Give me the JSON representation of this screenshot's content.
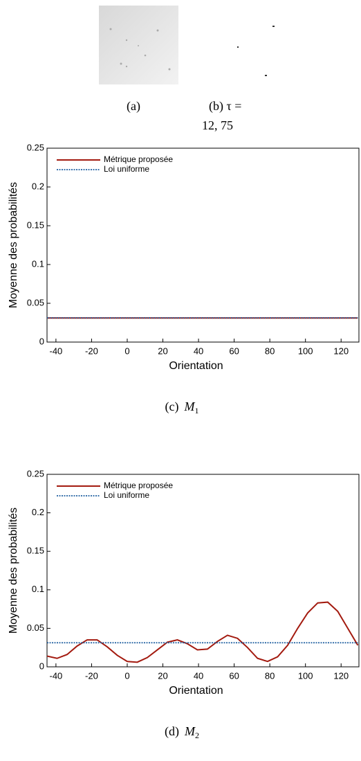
{
  "images": [
    {
      "caption_lines": [
        "(a)"
      ]
    },
    {
      "caption_lines": [
        "(b)  τ   =",
        "12, 75"
      ]
    }
  ],
  "chart_data": [
    {
      "type": "line",
      "caption": {
        "label": "(c)",
        "var": "M",
        "sub": "1"
      },
      "x_label": "Orientation",
      "y_label": "Moyenne des probabilités",
      "x": [
        -45,
        -39.375,
        -33.75,
        -28.125,
        -22.5,
        -16.875,
        -11.25,
        -5.625,
        0,
        5.625,
        11.25,
        16.875,
        22.5,
        28.125,
        33.75,
        39.375,
        45,
        50.625,
        56.25,
        61.875,
        67.5,
        73.125,
        78.75,
        84.375,
        90,
        95.625,
        101.25,
        106.875,
        112.5,
        118.125,
        123.75,
        129.375
      ],
      "series": [
        {
          "name": "Métrique proposée",
          "color": "#a31a0f",
          "dash": "solid",
          "values": [
            0.031,
            0.031,
            0.031,
            0.031,
            0.031,
            0.031,
            0.031,
            0.031,
            0.031,
            0.031,
            0.031,
            0.031,
            0.031,
            0.031,
            0.031,
            0.031,
            0.031,
            0.031,
            0.031,
            0.031,
            0.031,
            0.031,
            0.031,
            0.031,
            0.031,
            0.031,
            0.031,
            0.031,
            0.031,
            0.031,
            0.031,
            0.031
          ]
        },
        {
          "name": "Loi uniforme",
          "color": "#1f5fa0",
          "dash": "dotted",
          "values": [
            0.03125,
            0.03125,
            0.03125,
            0.03125,
            0.03125,
            0.03125,
            0.03125,
            0.03125,
            0.03125,
            0.03125,
            0.03125,
            0.03125,
            0.03125,
            0.03125,
            0.03125,
            0.03125,
            0.03125,
            0.03125,
            0.03125,
            0.03125,
            0.03125,
            0.03125,
            0.03125,
            0.03125,
            0.03125,
            0.03125,
            0.03125,
            0.03125,
            0.03125,
            0.03125,
            0.03125,
            0.03125
          ]
        }
      ],
      "xlim": [
        -45,
        130
      ],
      "xticks": [
        -40,
        -20,
        0,
        20,
        40,
        60,
        80,
        100,
        120
      ],
      "ylim": [
        0,
        0.25
      ],
      "yticks": [
        0,
        0.05,
        0.1,
        0.15,
        0.2,
        0.25
      ],
      "legend": "upper left"
    },
    {
      "type": "line",
      "caption": {
        "label": "(d)",
        "var": "M",
        "sub": "2"
      },
      "x_label": "Orientation",
      "y_label": "Moyenne des probabilités",
      "x": [
        -45,
        -39.375,
        -33.75,
        -28.125,
        -22.5,
        -16.875,
        -11.25,
        -5.625,
        0,
        5.625,
        11.25,
        16.875,
        22.5,
        28.125,
        33.75,
        39.375,
        45,
        50.625,
        56.25,
        61.875,
        67.5,
        73.125,
        78.75,
        84.375,
        90,
        95.625,
        101.25,
        106.875,
        112.5,
        118.125,
        123.75,
        129.375
      ],
      "series": [
        {
          "name": "Métrique proposée",
          "color": "#a31a0f",
          "dash": "solid",
          "values": [
            0.014,
            0.011,
            0.016,
            0.027,
            0.035,
            0.035,
            0.026,
            0.015,
            0.007,
            0.006,
            0.012,
            0.022,
            0.032,
            0.035,
            0.03,
            0.022,
            0.023,
            0.033,
            0.041,
            0.037,
            0.025,
            0.011,
            0.007,
            0.013,
            0.028,
            0.05,
            0.07,
            0.083,
            0.084,
            0.072,
            0.05,
            0.028
          ]
        },
        {
          "name": "Loi uniforme",
          "color": "#1f5fa0",
          "dash": "dotted",
          "values": [
            0.03125,
            0.03125,
            0.03125,
            0.03125,
            0.03125,
            0.03125,
            0.03125,
            0.03125,
            0.03125,
            0.03125,
            0.03125,
            0.03125,
            0.03125,
            0.03125,
            0.03125,
            0.03125,
            0.03125,
            0.03125,
            0.03125,
            0.03125,
            0.03125,
            0.03125,
            0.03125,
            0.03125,
            0.03125,
            0.03125,
            0.03125,
            0.03125,
            0.03125,
            0.03125,
            0.03125,
            0.03125
          ]
        }
      ],
      "xlim": [
        -45,
        130
      ],
      "xticks": [
        -40,
        -20,
        0,
        20,
        40,
        60,
        80,
        100,
        120
      ],
      "ylim": [
        0,
        0.25
      ],
      "yticks": [
        0,
        0.05,
        0.1,
        0.15,
        0.2,
        0.25
      ],
      "legend": "upper left"
    }
  ]
}
